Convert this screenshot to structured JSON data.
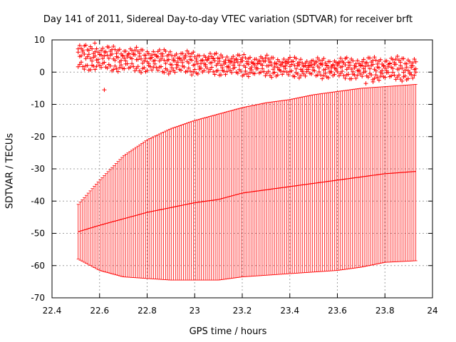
{
  "chart_data": {
    "type": "scatter",
    "title": "Day 141 of 2011, Sidereal Day-to-day VTEC variation (SDTVAR) for receiver brft",
    "xlabel": "GPS time / hours",
    "ylabel": "SDTVAR / TECUs",
    "xlim": [
      22.4,
      24
    ],
    "ylim": [
      -70,
      10
    ],
    "xticks": [
      "22.4",
      "22.6",
      "22.8",
      "23",
      "23.2",
      "23.4",
      "23.6",
      "23.8",
      "24"
    ],
    "yticks": [
      "10",
      "0",
      "-10",
      "-20",
      "-30",
      "-40",
      "-50",
      "-60",
      "-70"
    ],
    "grid": true,
    "color": "#ff0000",
    "series": [
      {
        "style": "errorbars",
        "x": [
          22.51,
          22.6,
          22.7,
          22.8,
          22.9,
          23.0,
          23.1,
          23.2,
          23.3,
          23.4,
          23.5,
          23.6,
          23.7,
          23.8,
          23.93
        ],
        "y": [
          -49.5,
          -47.5,
          -45.5,
          -43.5,
          -42,
          -40.5,
          -39.5,
          -37.5,
          -36.5,
          -35.5,
          -34.5,
          -33.5,
          -32.5,
          -31.5,
          -30.8
        ],
        "ylow": [
          -58,
          -61.5,
          -63.5,
          -64,
          -64.5,
          -64.5,
          -64.5,
          -63.5,
          -63,
          -62.5,
          -62,
          -61.5,
          -60.5,
          -59,
          -58.5
        ],
        "yhigh": [
          -41,
          -33.5,
          -26,
          -21,
          -17.5,
          -15,
          -13,
          -11,
          -9.5,
          -8.5,
          -7,
          -6,
          -5,
          -4.5,
          -3.8
        ]
      },
      {
        "style": "points",
        "bands": [
          {
            "x": [
              22.51,
              22.7,
              22.9,
              23.1,
              23.3,
              23.5,
              23.7,
              23.93
            ],
            "y": [
              7.2,
              6.5,
              5.5,
              4.5,
              3.8,
              3.0,
              3.3,
              3.5
            ]
          },
          {
            "x": [
              22.51,
              22.7,
              22.9,
              23.1,
              23.3,
              23.5,
              23.7,
              23.93
            ],
            "y": [
              5.0,
              4.5,
              3.5,
              2.8,
              2.3,
              1.8,
              1.5,
              1.2
            ]
          },
          {
            "x": [
              22.51,
              22.7,
              22.9,
              23.1,
              23.3,
              23.5,
              23.7,
              23.93
            ],
            "y": [
              2.0,
              1.5,
              0.8,
              0.3,
              -0.2,
              -0.5,
              -1.0,
              -1.5
            ]
          }
        ],
        "outliers": [
          {
            "x": 22.58,
            "y": 9.0
          },
          {
            "x": 22.62,
            "y": -5.5
          },
          {
            "x": 23.72,
            "y": -3.5
          },
          {
            "x": 23.75,
            "y": -3.0
          }
        ]
      }
    ]
  }
}
